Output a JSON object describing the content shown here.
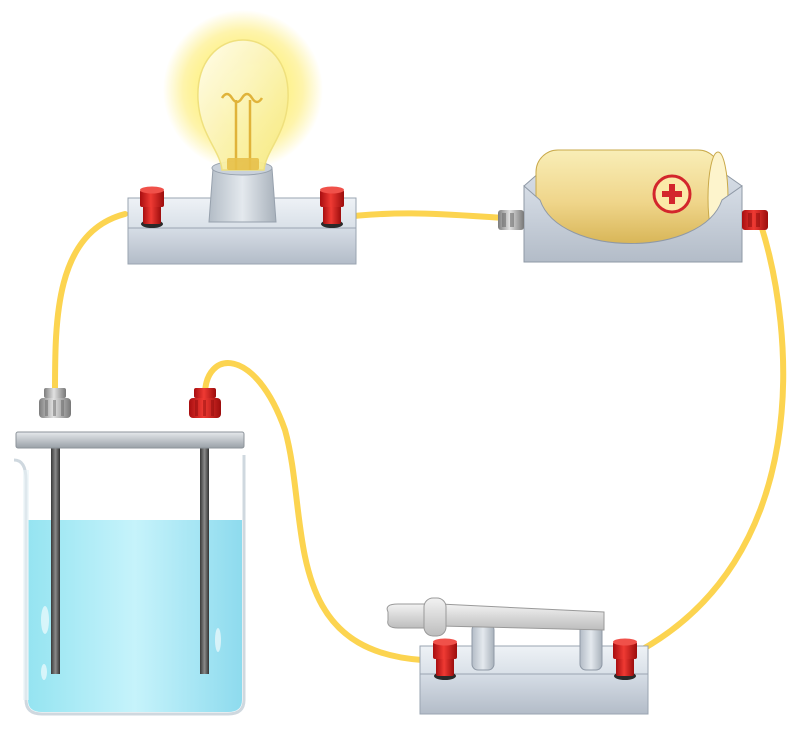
{
  "battery": {
    "symbol": "+"
  },
  "colors": {
    "wire": "#fcd450",
    "terminal_red": "#d9201f",
    "terminal_gray": "#a9a9a9",
    "base": "#c9d1dc",
    "water": "#8fe0ef",
    "battery_body": "#f1d785",
    "bulb_glow": "#fff17a"
  }
}
